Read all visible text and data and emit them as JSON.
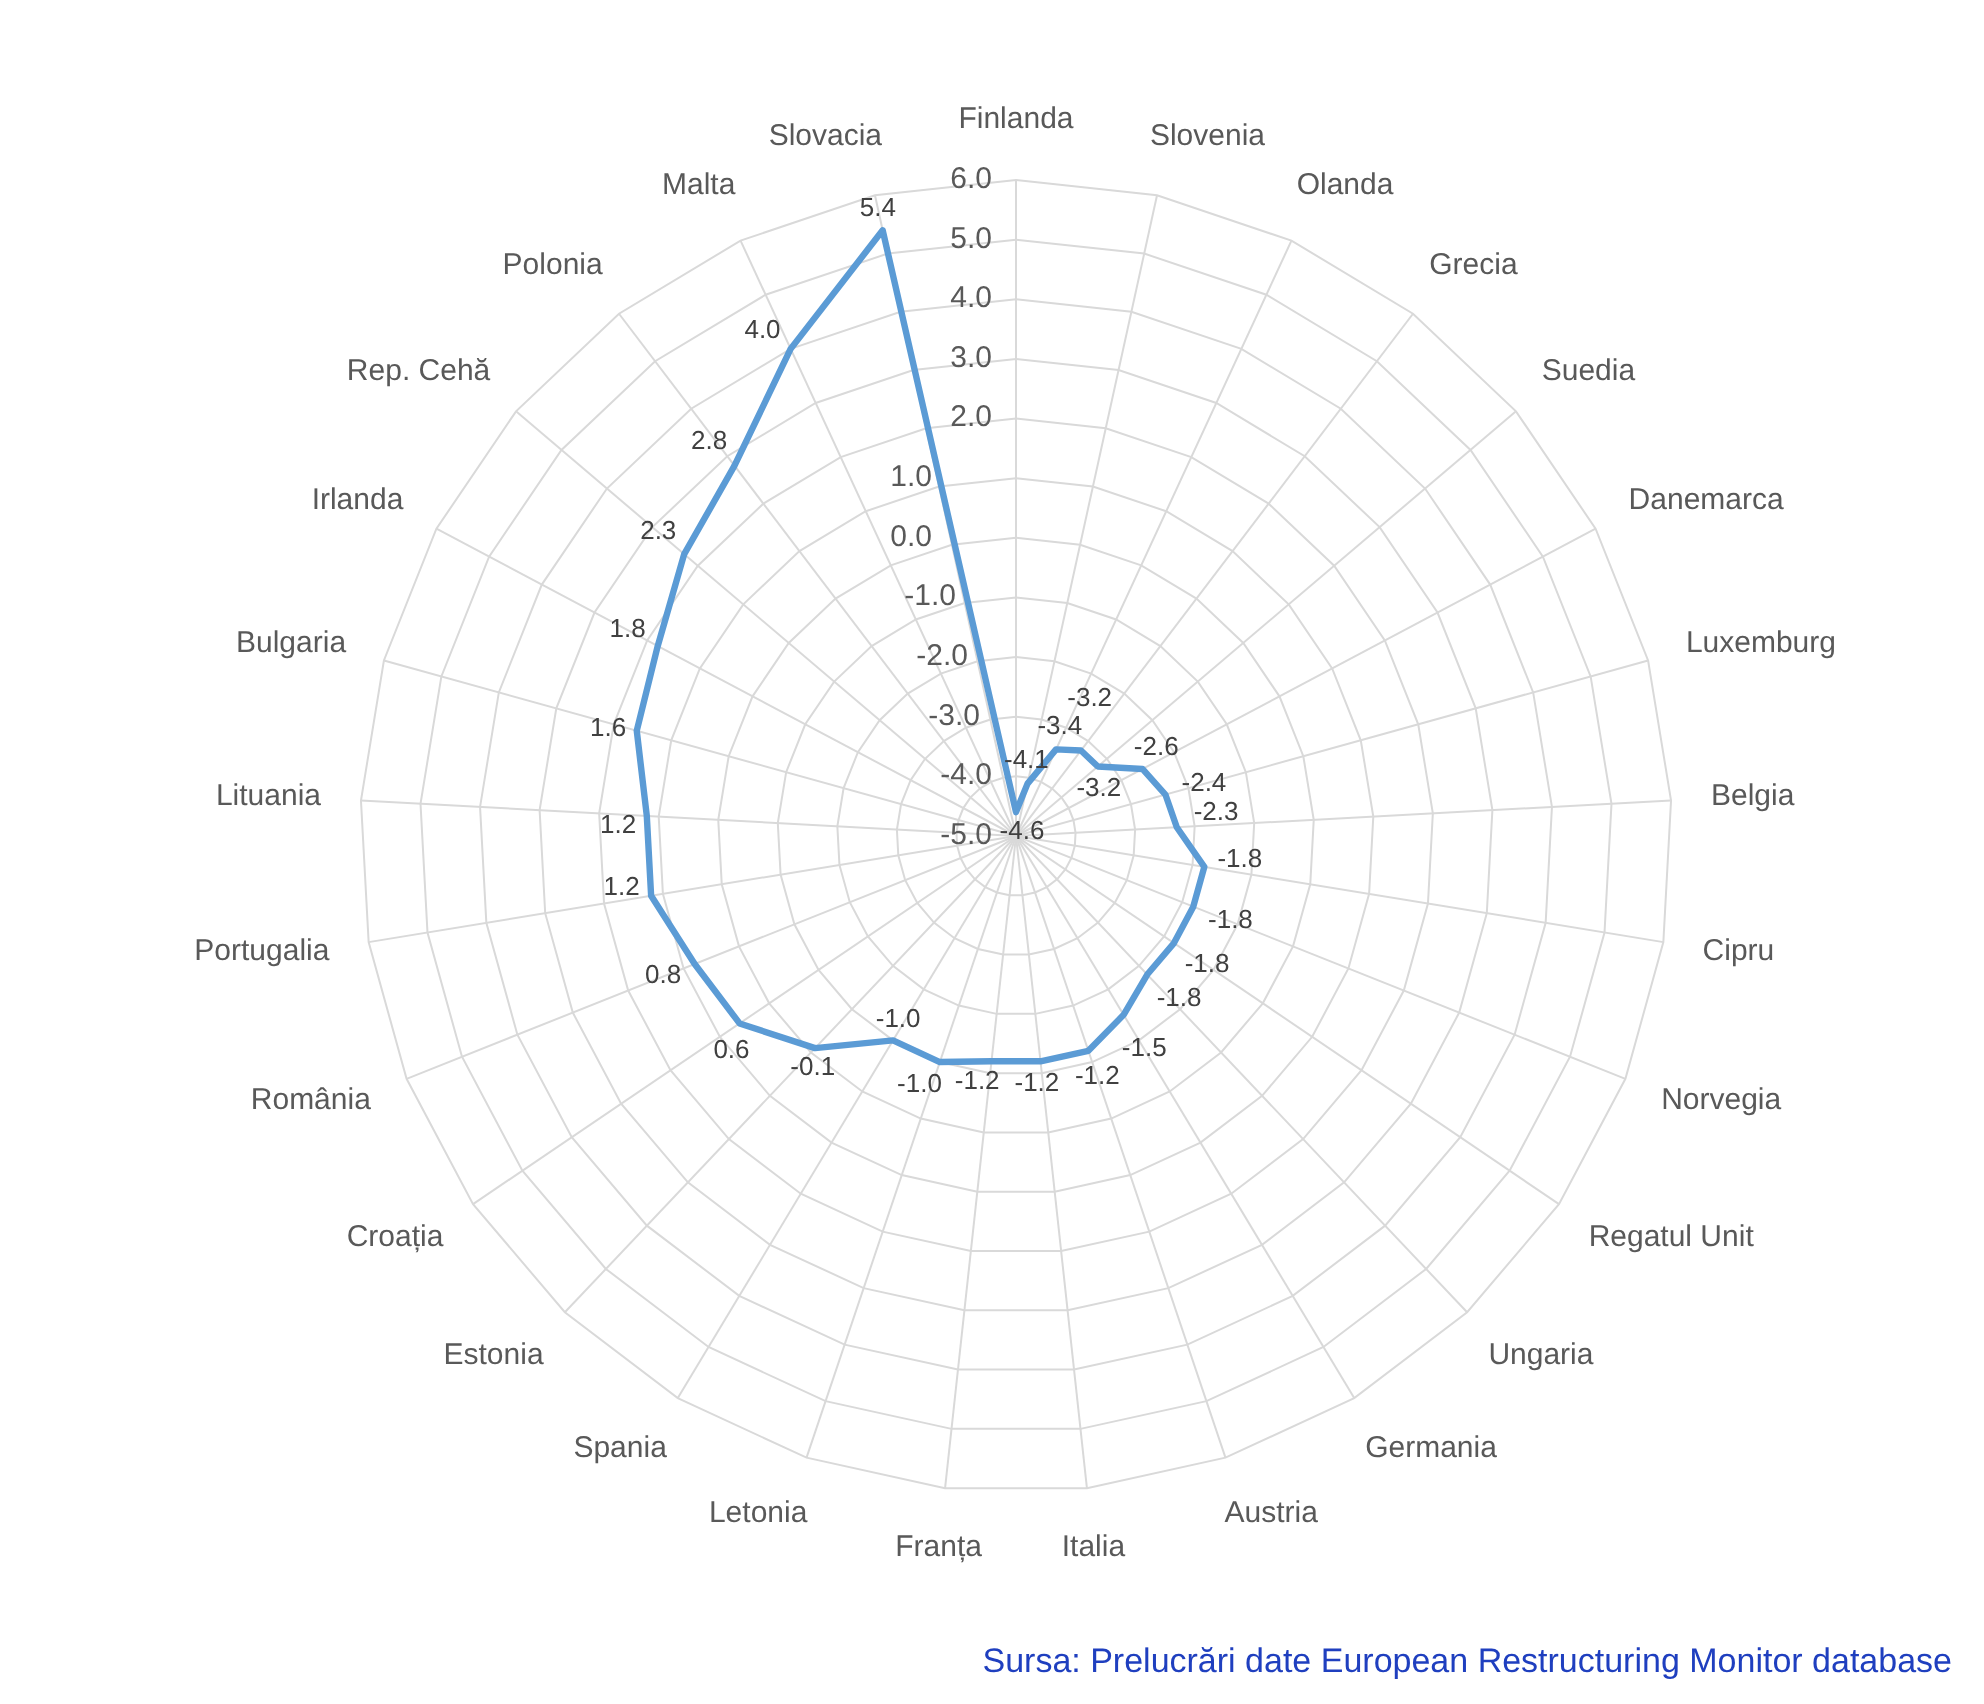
{
  "chart_data": {
    "type": "radar",
    "categories": [
      "Finlanda",
      "Slovenia",
      "Olanda",
      "Grecia",
      "Suedia",
      "Danemarca",
      "Luxemburg",
      "Belgia",
      "Cipru",
      "Norvegia",
      "Regatul Unit",
      "Ungaria",
      "Germania",
      "Austria",
      "Italia",
      "Franța",
      "Letonia",
      "Spania",
      "Estonia",
      "Croația",
      "România",
      "Portugalia",
      "Lituania",
      "Bulgaria",
      "Irlanda",
      "Rep. Cehă",
      "Polonia",
      "Malta",
      "Slovacia"
    ],
    "series": [
      {
        "color": "#5b9bd5",
        "values": [
          -4.6,
          -4.1,
          -3.4,
          -3.2,
          -3.2,
          -2.6,
          -2.4,
          -2.3,
          -1.8,
          -1.8,
          -1.8,
          -1.8,
          -1.5,
          -1.2,
          -1.2,
          -1.2,
          -1.0,
          -1.0,
          -0.1,
          0.6,
          0.8,
          1.2,
          1.2,
          1.6,
          1.8,
          2.3,
          2.8,
          4.0,
          5.4
        ],
        "value_labels": [
          "-4.6",
          "-4.1",
          "-3.4",
          "-3.2",
          "-3.2",
          "-2.6",
          "-2.4",
          "-2.3",
          "-1.8",
          "-1.8",
          "-1.8",
          "-1.8",
          "-1.5",
          "-1.2",
          "-1.2",
          "-1.2",
          "-1.0",
          "-1.0",
          "-0.1",
          "0.6",
          "0.8",
          "1.2",
          "1.2",
          "1.6",
          "1.8",
          "2.3",
          "2.8",
          "4.0",
          "5.4"
        ]
      }
    ],
    "ylim": [
      -5,
      6
    ],
    "yticks": [
      {
        "value": -5,
        "label": "-5.0"
      },
      {
        "value": -4,
        "label": "-4.0"
      },
      {
        "value": -3,
        "label": "-3.0"
      },
      {
        "value": -2,
        "label": "-2.0"
      },
      {
        "value": -1,
        "label": "-1.0"
      },
      {
        "value": 0,
        "label": "0.0"
      },
      {
        "value": 1,
        "label": "1.0"
      },
      {
        "value": 2,
        "label": "2.0"
      },
      {
        "value": 3,
        "label": "3.0"
      },
      {
        "value": 4,
        "label": "4.0"
      },
      {
        "value": 5,
        "label": "5.0"
      },
      {
        "value": 6,
        "label": "6.0"
      }
    ],
    "grid": true,
    "marker": "none",
    "line_style": "solid",
    "annotations": [
      "Sursa: Prelucrări date European Restructuring Monitor database"
    ]
  }
}
